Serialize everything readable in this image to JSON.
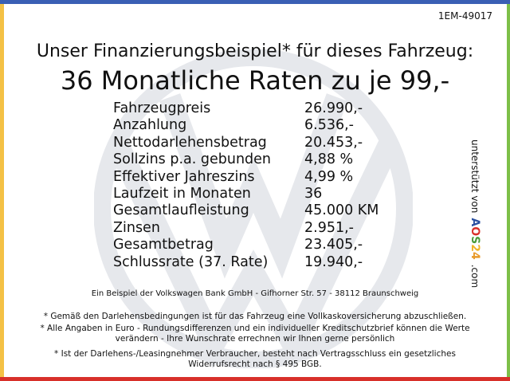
{
  "reference": "1EM-49017",
  "headline": "Unser Finanzierungsbeispiel* für dieses Fahrzeug:",
  "subheadline": "36 Monatliche Raten zu je 99,-",
  "rows": [
    {
      "label": "Fahrzeugpreis",
      "value": "26.990,-"
    },
    {
      "label": "Anzahlung",
      "value": "6.536,-"
    },
    {
      "label": "Nettodarlehensbetrag",
      "value": "20.453,-"
    },
    {
      "label": "Sollzins p.a. gebunden",
      "value": "4,88 %"
    },
    {
      "label": "Effektiver Jahreszins",
      "value": "4,99 %"
    },
    {
      "label": "Laufzeit in Monaten",
      "value": "36"
    },
    {
      "label": "Gesamtlaufleistung",
      "value": "45.000 KM"
    },
    {
      "label": "Zinsen",
      "value": "2.951,-"
    },
    {
      "label": "Gesamtbetrag",
      "value": "23.405,-"
    },
    {
      "label": "Schlussrate (37. Rate)",
      "value": "19.940,-"
    }
  ],
  "sponsor": {
    "prefix": "unterstützt von",
    "logo_letters": [
      "A",
      "O",
      "S",
      "2",
      "4"
    ],
    "suffix": ".com",
    "logo_colors": [
      "#2a4fa0",
      "#d8302a",
      "#4a9a3a",
      "#f0b429",
      "#e89a2a"
    ]
  },
  "footer": {
    "bank": "Ein Beispiel der Volkswagen Bank GmbH - Gifhorner Str. 57 - 38112 Braunschweig",
    "note1": "* Gemäß den Darlehensbedingungen ist für das Fahrzeug eine Vollkaskoversicherung abzuschließen.",
    "note2a": "* Alle Angaben in Euro - Rundungsdifferenzen und ein individueller Kreditschutzbrief können die Werte",
    "note2b": "verändern - Ihre Wunschrate errechnen wir Ihnen gerne persönlich",
    "note3a": "* Ist der Darlehens-/Leasingnehmer Verbraucher, besteht nach Vertragsschluss ein gesetzliches",
    "note3b": "Widerrufsrecht nach § 495 BGB."
  },
  "colors": {
    "top": "#3a5fb4",
    "left": "#f4c145",
    "right": "#7dbf48",
    "bottom": "#d8302a",
    "watermark": "#e6e8ec"
  }
}
